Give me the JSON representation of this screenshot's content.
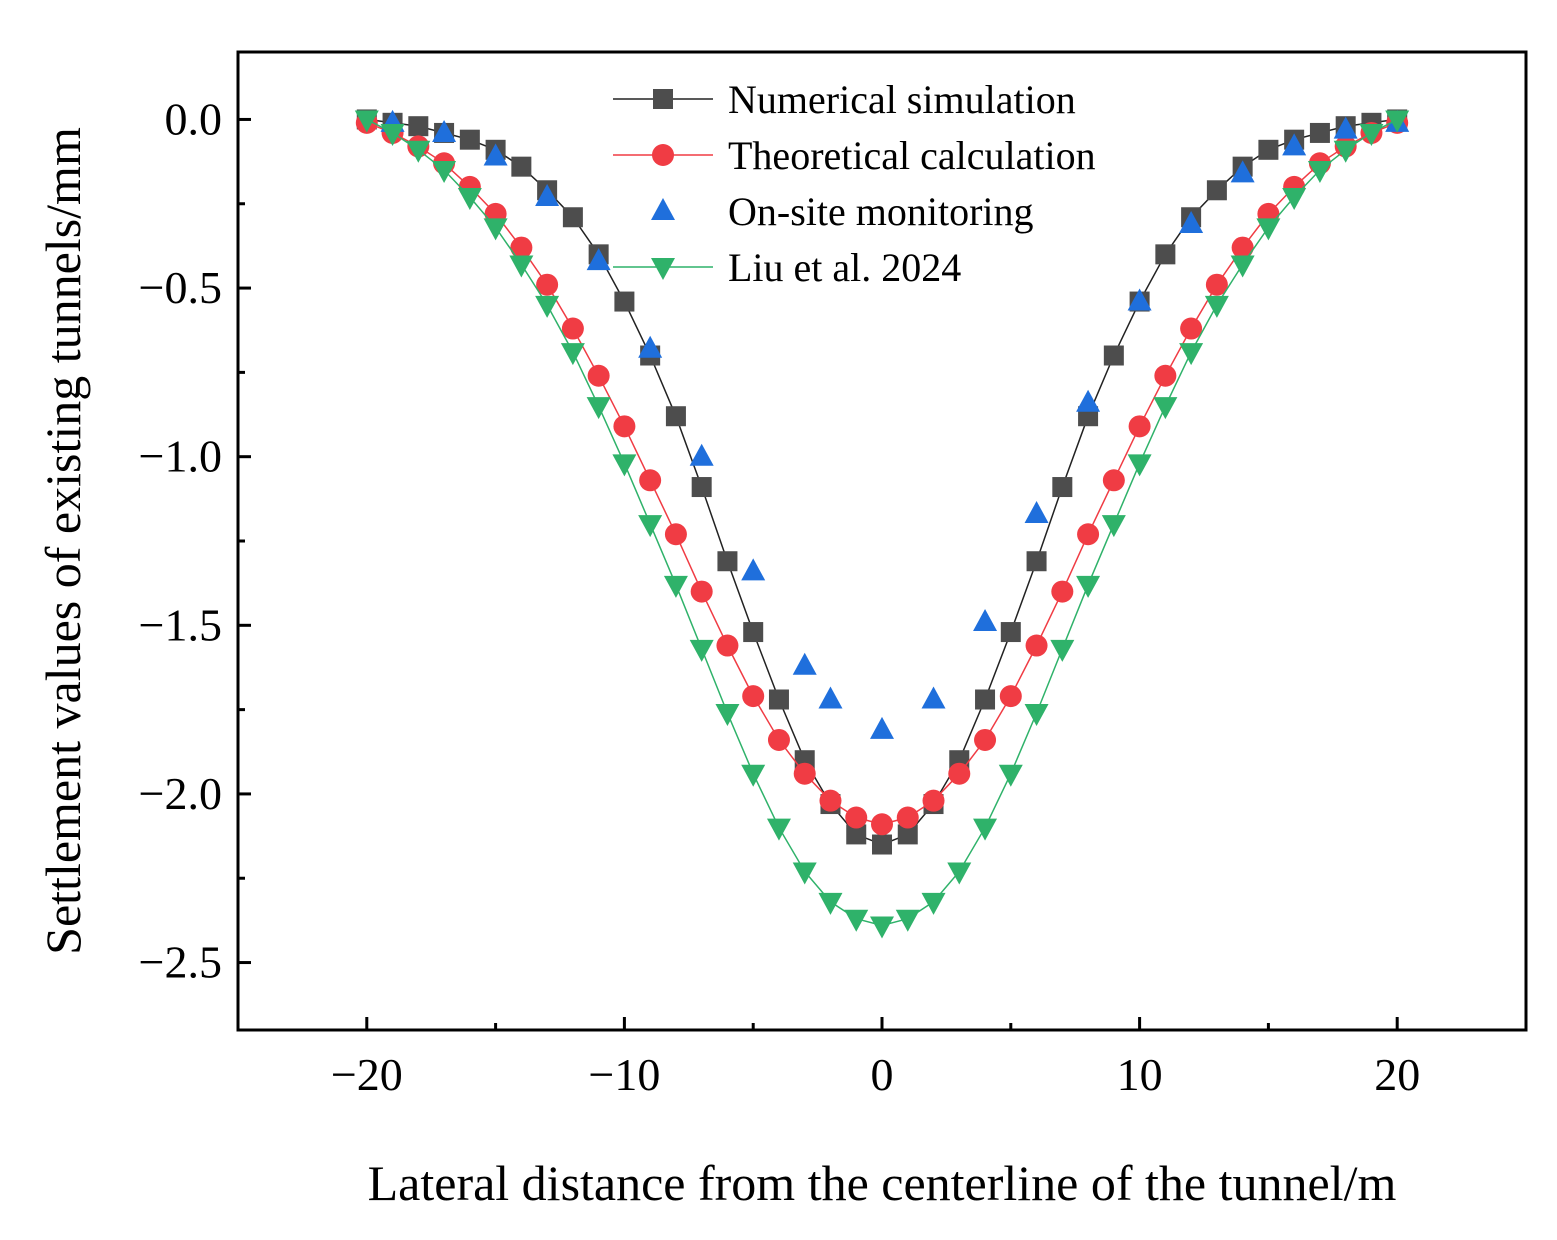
{
  "chart_data": {
    "type": "line",
    "title": "",
    "xlabel": "Lateral distance from the centerline of the tunnel/m",
    "ylabel": "Settlement values of existing tunnels/mm",
    "xlim": [
      -25,
      25
    ],
    "ylim": [
      -2.7,
      0.2
    ],
    "xticks": [
      -20,
      -10,
      0,
      10,
      20
    ],
    "xtick_labels": [
      "−20",
      "−10",
      "0",
      "10",
      "20"
    ],
    "yticks": [
      0.0,
      -0.5,
      -1.0,
      -1.5,
      -2.0,
      -2.5
    ],
    "ytick_labels": [
      "0.0",
      "−0.5",
      "−1.0",
      "−1.5",
      "−2.0",
      "−2.5"
    ],
    "grid": false,
    "legend_position": "top-center",
    "series": [
      {
        "name": "Numerical simulation",
        "marker": "square",
        "line": true,
        "color": "#4d4d4d",
        "line_color": "#222222",
        "x": [
          -20,
          -19,
          -18,
          -17,
          -16,
          -15,
          -14,
          -13,
          -12,
          -11,
          -10,
          -9,
          -8,
          -7,
          -6,
          -5,
          -4,
          -3,
          -2,
          -1,
          0,
          1,
          2,
          3,
          4,
          5,
          6,
          7,
          8,
          9,
          10,
          11,
          12,
          13,
          14,
          15,
          16,
          17,
          18,
          19,
          20
        ],
        "y": [
          0.0,
          -0.01,
          -0.02,
          -0.04,
          -0.06,
          -0.09,
          -0.14,
          -0.21,
          -0.29,
          -0.4,
          -0.54,
          -0.7,
          -0.88,
          -1.09,
          -1.31,
          -1.52,
          -1.72,
          -1.9,
          -2.03,
          -2.12,
          -2.15,
          -2.12,
          -2.03,
          -1.9,
          -1.72,
          -1.52,
          -1.31,
          -1.09,
          -0.88,
          -0.7,
          -0.54,
          -0.4,
          -0.29,
          -0.21,
          -0.14,
          -0.09,
          -0.06,
          -0.04,
          -0.02,
          -0.01,
          0.0
        ]
      },
      {
        "name": "Theoretical calculation",
        "marker": "circle",
        "line": true,
        "color": "#f03c44",
        "line_color": "#f03c44",
        "x": [
          -20,
          -19,
          -18,
          -17,
          -16,
          -15,
          -14,
          -13,
          -12,
          -11,
          -10,
          -9,
          -8,
          -7,
          -6,
          -5,
          -4,
          -3,
          -2,
          -1,
          0,
          1,
          2,
          3,
          4,
          5,
          6,
          7,
          8,
          9,
          10,
          11,
          12,
          13,
          14,
          15,
          16,
          17,
          18,
          19,
          20
        ],
        "y": [
          -0.01,
          -0.04,
          -0.08,
          -0.13,
          -0.2,
          -0.28,
          -0.38,
          -0.49,
          -0.62,
          -0.76,
          -0.91,
          -1.07,
          -1.23,
          -1.4,
          -1.56,
          -1.71,
          -1.84,
          -1.94,
          -2.02,
          -2.07,
          -2.09,
          -2.07,
          -2.02,
          -1.94,
          -1.84,
          -1.71,
          -1.56,
          -1.4,
          -1.23,
          -1.07,
          -0.91,
          -0.76,
          -0.62,
          -0.49,
          -0.38,
          -0.28,
          -0.2,
          -0.13,
          -0.08,
          -0.04,
          -0.01
        ]
      },
      {
        "name": "On-site monitoring",
        "marker": "triangle-up",
        "line": false,
        "color": "#1f6fdc",
        "x": [
          -19,
          -17,
          -15,
          -13,
          -11,
          -9,
          -7,
          -5,
          -3,
          -2,
          0,
          2,
          4,
          6,
          8,
          10,
          12,
          14,
          16,
          18,
          20
        ],
        "y": [
          -0.01,
          -0.04,
          -0.11,
          -0.23,
          -0.42,
          -0.68,
          -1.0,
          -1.34,
          -1.62,
          -1.72,
          -1.81,
          -1.72,
          -1.49,
          -1.17,
          -0.84,
          -0.54,
          -0.31,
          -0.16,
          -0.08,
          -0.03,
          -0.01
        ]
      },
      {
        "name": "Liu et al. 2024",
        "marker": "triangle-down",
        "line": true,
        "color": "#2fb26a",
        "line_color": "#2fb26a",
        "x": [
          -20,
          -19,
          -18,
          -17,
          -16,
          -15,
          -14,
          -13,
          -12,
          -11,
          -10,
          -9,
          -8,
          -7,
          -6,
          -5,
          -4,
          -3,
          -2,
          -1,
          0,
          1,
          2,
          3,
          4,
          5,
          6,
          7,
          8,
          9,
          10,
          11,
          12,
          13,
          14,
          15,
          16,
          17,
          18,
          19,
          20
        ],
        "y": [
          0.0,
          -0.04,
          -0.09,
          -0.15,
          -0.23,
          -0.32,
          -0.43,
          -0.55,
          -0.69,
          -0.85,
          -1.02,
          -1.2,
          -1.38,
          -1.57,
          -1.76,
          -1.94,
          -2.1,
          -2.23,
          -2.32,
          -2.37,
          -2.39,
          -2.37,
          -2.32,
          -2.23,
          -2.1,
          -1.94,
          -1.76,
          -1.57,
          -1.38,
          -1.2,
          -1.02,
          -0.85,
          -0.69,
          -0.55,
          -0.43,
          -0.32,
          -0.23,
          -0.15,
          -0.09,
          -0.04,
          0.0
        ]
      }
    ]
  }
}
